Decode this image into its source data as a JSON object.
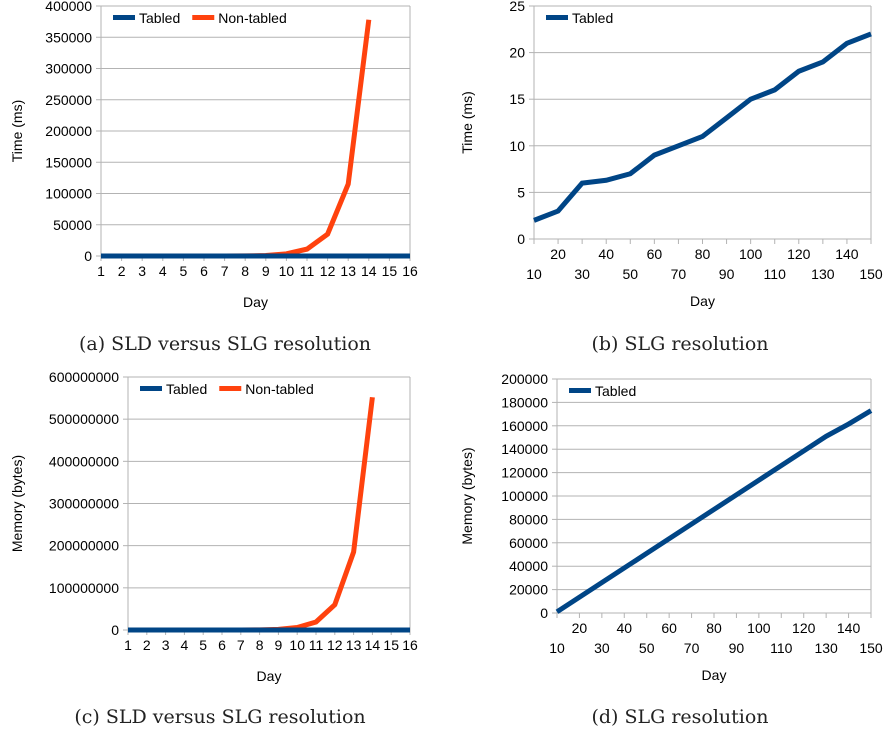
{
  "colors": {
    "tabled": "#004586",
    "non_tabled": "#ff420e",
    "grid": "#b3b3b3",
    "axis": "#b3b3b3"
  },
  "chart_data": [
    {
      "type": "line",
      "caption": "(a) SLD versus SLG resolution",
      "xlabel": "Day",
      "ylabel": "Time (ms)",
      "ylim": [
        0,
        400000
      ],
      "yticks": [
        0,
        50000,
        100000,
        150000,
        200000,
        250000,
        300000,
        350000,
        400000
      ],
      "categories": [
        "1",
        "2",
        "3",
        "4",
        "5",
        "6",
        "7",
        "8",
        "9",
        "10",
        "11",
        "12",
        "13",
        "14",
        "15",
        "16"
      ],
      "legend_position": "top-left",
      "series": [
        {
          "name": "Tabled",
          "color": "#004586",
          "values": [
            0,
            0,
            0,
            0,
            0,
            0,
            0,
            0,
            0,
            0,
            0,
            0,
            0,
            0,
            0,
            0
          ]
        },
        {
          "name": "Non-tabled",
          "color": "#ff420e",
          "values": [
            0,
            0,
            0,
            0,
            0,
            0,
            50,
            200,
            800,
            3500,
            11000,
            35000,
            115000,
            378000,
            null,
            null
          ]
        }
      ]
    },
    {
      "type": "line",
      "caption": "(b) SLG resolution",
      "xlabel": "Day",
      "ylabel": "Time (ms)",
      "ylim": [
        0,
        25
      ],
      "yticks": [
        0,
        5,
        10,
        15,
        20,
        25
      ],
      "categories": [
        "10",
        "20",
        "30",
        "40",
        "50",
        "60",
        "70",
        "80",
        "90",
        "100",
        "110",
        "120",
        "130",
        "140",
        "150"
      ],
      "staggered_labels": true,
      "legend_position": "top-left",
      "series": [
        {
          "name": "Tabled",
          "color": "#004586",
          "values": [
            2,
            3,
            6,
            6.3,
            7,
            9,
            10,
            11,
            13,
            15,
            16,
            18,
            19,
            21,
            22
          ]
        }
      ]
    },
    {
      "type": "line",
      "caption": "(c) SLD versus SLG resolution",
      "xlabel": "Day",
      "ylabel": "Memory (bytes)",
      "ylim": [
        0,
        600000000
      ],
      "yticks": [
        0,
        100000000,
        200000000,
        300000000,
        400000000,
        500000000,
        600000000
      ],
      "categories": [
        "1",
        "2",
        "3",
        "4",
        "5",
        "6",
        "7",
        "8",
        "9",
        "10",
        "11",
        "12",
        "13",
        "14",
        "15",
        "16"
      ],
      "legend_position": "top-left",
      "series": [
        {
          "name": "Tabled",
          "color": "#004586",
          "values": [
            0,
            0,
            0,
            0,
            0,
            0,
            0,
            0,
            0,
            0,
            0,
            0,
            0,
            0,
            0,
            0
          ]
        },
        {
          "name": "Non-tabled",
          "color": "#ff420e",
          "values": [
            0,
            0,
            0,
            0,
            0,
            0,
            100000,
            400000,
            1500000,
            6000000,
            19000000,
            60000000,
            185000000,
            552000000,
            null,
            null
          ]
        }
      ]
    },
    {
      "type": "line",
      "caption": "(d) SLG resolution",
      "xlabel": "Day",
      "ylabel": "Memory (bytes)",
      "ylim": [
        0,
        200000
      ],
      "yticks": [
        0,
        20000,
        40000,
        60000,
        80000,
        100000,
        120000,
        140000,
        160000,
        180000,
        200000
      ],
      "categories": [
        "10",
        "20",
        "30",
        "40",
        "50",
        "60",
        "70",
        "80",
        "90",
        "100",
        "110",
        "120",
        "130",
        "140",
        "150"
      ],
      "staggered_labels": true,
      "legend_position": "top-left",
      "series": [
        {
          "name": "Tabled",
          "color": "#004586",
          "values": [
            1000,
            13500,
            26000,
            38500,
            51000,
            63500,
            76000,
            88500,
            101000,
            113500,
            126000,
            138500,
            151000,
            161500,
            173000
          ]
        }
      ]
    }
  ]
}
